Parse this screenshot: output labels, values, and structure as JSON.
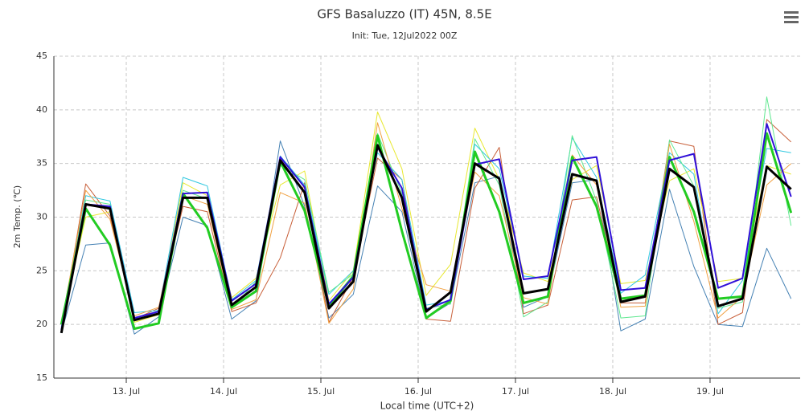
{
  "chart_data": {
    "type": "line",
    "title": "GFS Basaluzzo (IT) 45N, 8.5E",
    "subtitle": "Init: Tue, 12Jul2022 00Z",
    "y_label": "2m Temp. (℃)",
    "x_label": "Local time (UTC+2)",
    "x": [
      12.333,
      12.583,
      12.833,
      13.083,
      13.333,
      13.583,
      13.833,
      14.083,
      14.333,
      14.583,
      14.833,
      15.083,
      15.333,
      15.583,
      15.833,
      16.083,
      16.333,
      16.583,
      16.833,
      17.083,
      17.333,
      17.583,
      17.833,
      18.083,
      18.333,
      18.583,
      18.833,
      19.083,
      19.333,
      19.583,
      19.833
    ],
    "xlim": [
      12.256,
      19.926
    ],
    "xticks": [
      {
        "value": 13,
        "label": "13. Jul"
      },
      {
        "value": 14,
        "label": "14. Jul"
      },
      {
        "value": 15,
        "label": "15. Jul"
      },
      {
        "value": 16,
        "label": "16. Jul"
      },
      {
        "value": 17,
        "label": "17. Jul"
      },
      {
        "value": 18,
        "label": "18. Jul"
      },
      {
        "value": 19,
        "label": "19. Jul"
      }
    ],
    "ylim": [
      15,
      45
    ],
    "yticks": [
      15,
      20,
      25,
      30,
      35,
      40,
      45
    ],
    "grid": true,
    "series": [
      {
        "color": "#4682b4",
        "width": 1,
        "values": [
          19.2,
          27.4,
          27.6,
          19.1,
          20.7,
          30.0,
          29.2,
          20.5,
          22.2,
          37.1,
          31.0,
          20.6,
          22.8,
          32.9,
          30.5,
          20.6,
          22.0,
          33.2,
          33.8,
          21.6,
          22.6,
          33.2,
          33.5,
          19.4,
          20.5,
          32.6,
          25.4,
          20.0,
          19.8,
          27.1,
          22.4
        ]
      },
      {
        "color": "#c8603a",
        "width": 1,
        "values": [
          19.5,
          33.1,
          30.1,
          20.5,
          21.5,
          31.0,
          30.5,
          21.2,
          22.0,
          26.2,
          33.2,
          20.2,
          24.4,
          35.5,
          33.5,
          20.5,
          20.3,
          32.7,
          36.5,
          21.0,
          21.8,
          31.6,
          31.9,
          22.0,
          22.0,
          37.1,
          36.6,
          20.0,
          21.1,
          39.1,
          37.0
        ]
      },
      {
        "color": "#e8e830",
        "width": 1,
        "values": [
          20.0,
          30.0,
          30.5,
          20.2,
          20.9,
          33.2,
          32.0,
          22.5,
          24.3,
          33.0,
          34.3,
          22.2,
          25.0,
          39.8,
          34.5,
          22.7,
          25.6,
          38.3,
          33.5,
          24.8,
          24.0,
          33.5,
          34.8,
          23.8,
          24.1,
          33.4,
          34.5,
          24.0,
          24.3,
          34.8,
          34.0
        ]
      },
      {
        "color": "#30c8e0",
        "width": 1,
        "values": [
          19.8,
          32.0,
          31.5,
          21.1,
          21.3,
          33.7,
          32.9,
          22.3,
          24.1,
          35.7,
          33.0,
          22.8,
          25.0,
          36.0,
          33.5,
          21.8,
          22.2,
          36.8,
          34.5,
          24.5,
          24.3,
          37.4,
          33.7,
          22.9,
          24.6,
          36.0,
          34.0,
          21.0,
          24.1,
          36.4,
          36.0
        ]
      },
      {
        "color": "#60e890",
        "width": 1,
        "values": [
          20.2,
          31.6,
          31.2,
          20.5,
          21.0,
          32.5,
          31.7,
          21.5,
          24.0,
          34.8,
          33.5,
          23.0,
          24.7,
          37.8,
          32.2,
          21.5,
          21.9,
          37.3,
          33.0,
          20.7,
          22.1,
          37.6,
          31.5,
          20.6,
          20.8,
          37.2,
          32.9,
          21.5,
          22.1,
          41.2,
          29.2
        ]
      },
      {
        "color": "#f0a040",
        "width": 1,
        "values": [
          20.0,
          32.5,
          29.8,
          20.8,
          21.6,
          32.0,
          31.2,
          21.4,
          22.3,
          32.3,
          31.3,
          20.1,
          23.3,
          38.8,
          30.8,
          23.7,
          23.1,
          34.2,
          32.0,
          22.5,
          21.9,
          35.8,
          33.0,
          21.6,
          21.7,
          36.8,
          29.6,
          20.6,
          22.6,
          33.0,
          35.0
        ]
      },
      {
        "color": "#22cc22",
        "width": 3,
        "values": [
          20.0,
          30.8,
          27.4,
          19.6,
          20.1,
          32.2,
          29.0,
          21.6,
          23.1,
          35.2,
          30.6,
          21.7,
          24.5,
          37.6,
          28.7,
          20.6,
          22.2,
          36.1,
          30.5,
          22.0,
          22.6,
          35.6,
          31.0,
          22.4,
          22.7,
          35.6,
          30.5,
          22.4,
          22.6,
          37.8,
          30.4
        ]
      },
      {
        "color": "#3010d8",
        "width": 2,
        "values": [
          19.5,
          31.2,
          31.0,
          20.6,
          21.2,
          32.2,
          32.3,
          22.2,
          23.8,
          35.6,
          32.8,
          21.9,
          24.4,
          36.5,
          32.7,
          21.4,
          22.3,
          34.9,
          35.4,
          24.2,
          24.5,
          35.3,
          35.6,
          23.2,
          23.4,
          35.3,
          35.9,
          23.4,
          24.3,
          38.7,
          31.9
        ]
      },
      {
        "color": "#000000",
        "width": 3,
        "values": [
          19.2,
          31.2,
          30.8,
          20.4,
          21.0,
          31.8,
          31.8,
          21.8,
          23.5,
          35.3,
          32.3,
          21.5,
          24.0,
          36.7,
          31.8,
          21.2,
          23.0,
          35.0,
          33.6,
          22.9,
          23.3,
          34.0,
          33.4,
          22.1,
          22.6,
          34.5,
          32.8,
          21.7,
          22.4,
          34.7,
          32.6
        ]
      }
    ]
  }
}
